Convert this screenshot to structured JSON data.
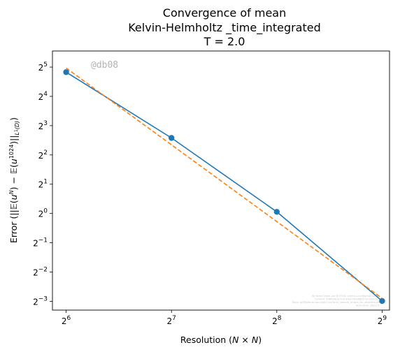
{
  "title_lines": [
    "Convergence of mean",
    "Kelvin-Helmholtz _time_integrated"
  ],
  "title_time": "T = 2.0",
  "watermark": "@db08",
  "fineprint": [
    "By Kjetil Olsen Lye @ ETHZ <kjetil.o.lye@gmail.com>",
    "Commit: 4d6f99b3e7c20e4a1f3be68b57d2d94cbc5",
    "Repo: git@github.com:kjetil-lye/ismo_sample_scripts_for_statistics.git",
    "Hostname: ethz-01"
  ],
  "chart_data": {
    "type": "line",
    "xlabel": "Resolution (N × N)",
    "ylabel": "Error (||E(u^N) − E(u^1024)||_L1(D))",
    "x_scale": "log2",
    "y_scale": "log2",
    "xlim_log2": [
      5.87,
      9.07
    ],
    "ylim_log2": [
      -3.3,
      5.55
    ],
    "xticks": [
      {
        "base": "2",
        "exp": "6",
        "value": 64
      },
      {
        "base": "2",
        "exp": "7",
        "value": 128
      },
      {
        "base": "2",
        "exp": "8",
        "value": 256
      },
      {
        "base": "2",
        "exp": "9",
        "value": 512
      }
    ],
    "yticks": [
      {
        "base": "2",
        "exp": "5",
        "value": 32
      },
      {
        "base": "2",
        "exp": "4",
        "value": 16
      },
      {
        "base": "2",
        "exp": "3",
        "value": 8
      },
      {
        "base": "2",
        "exp": "2",
        "value": 4
      },
      {
        "base": "2",
        "exp": "1",
        "value": 2
      },
      {
        "base": "2",
        "exp": "0",
        "value": 1
      },
      {
        "base": "2",
        "exp": "−1",
        "value": 0.5
      },
      {
        "base": "2",
        "exp": "−2",
        "value": 0.25
      },
      {
        "base": "2",
        "exp": "−3",
        "value": 0.125
      }
    ],
    "series": [
      {
        "style": "solid-markers",
        "color": "#1f77b4",
        "x": [
          64,
          128,
          256,
          512
        ],
        "y": [
          28.4,
          5.98,
          1.04,
          0.126
        ]
      },
      {
        "style": "dashed",
        "color": "#ff7f0e",
        "x": [
          64,
          512
        ],
        "y": [
          31.3,
          0.134
        ]
      }
    ],
    "grid": false,
    "legend": "none"
  }
}
